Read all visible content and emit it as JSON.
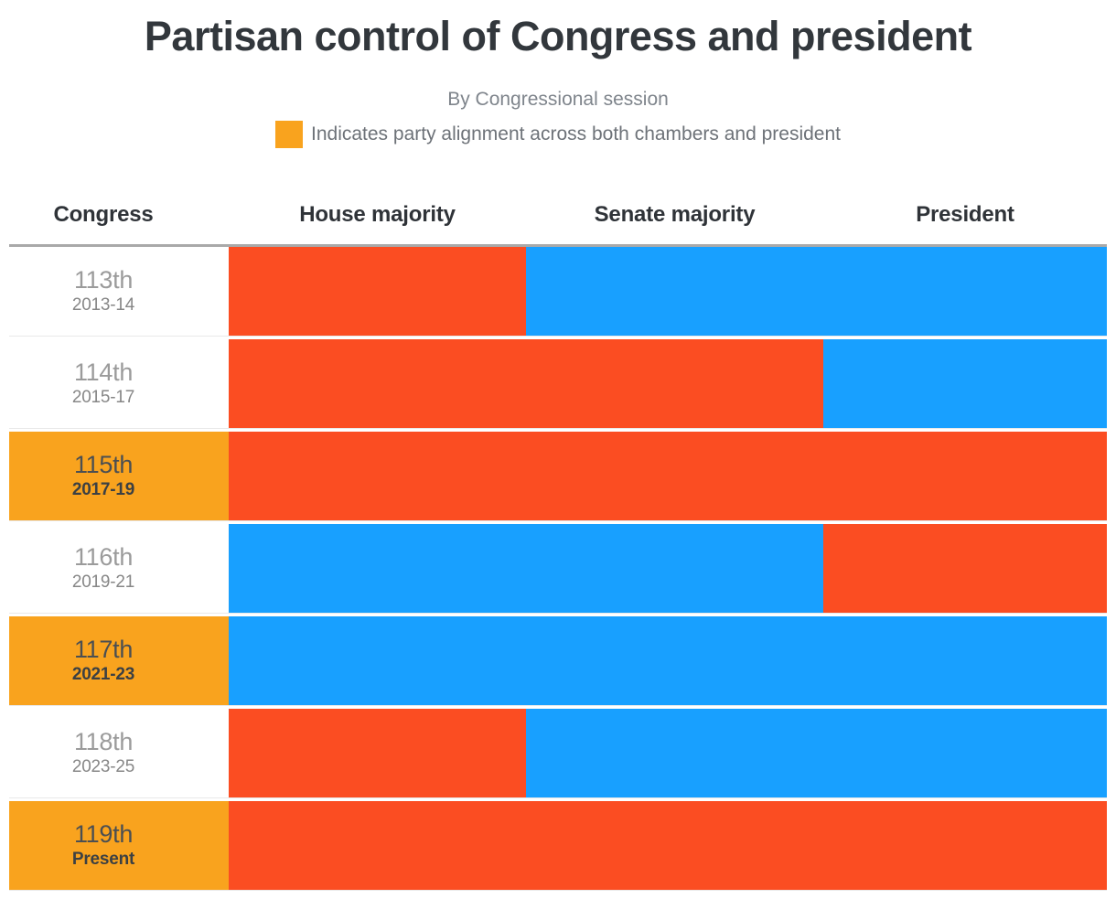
{
  "chart_data": {
    "type": "table",
    "title": "Partisan control of Congress and president",
    "subtitle": "By Congressional session",
    "legend": {
      "swatch_color": "#f9a31e",
      "label": "Indicates party alignment across both chambers and president"
    },
    "columns": [
      "Congress",
      "House majority",
      "Senate majority",
      "President"
    ],
    "party_colors": {
      "R": "#fb4d22",
      "D": "#18a0ff"
    },
    "alignment_color": "#f9a31e",
    "rows": [
      {
        "congress": "113th",
        "years": "2013-14",
        "house": "R",
        "senate": "D",
        "president": "D",
        "aligned": false
      },
      {
        "congress": "114th",
        "years": "2015-17",
        "house": "R",
        "senate": "R",
        "president": "D",
        "aligned": false
      },
      {
        "congress": "115th",
        "years": "2017-19",
        "house": "R",
        "senate": "R",
        "president": "R",
        "aligned": true
      },
      {
        "congress": "116th",
        "years": "2019-21",
        "house": "D",
        "senate": "D",
        "president": "R",
        "aligned": false
      },
      {
        "congress": "117th",
        "years": "2021-23",
        "house": "D",
        "senate": "D",
        "president": "D",
        "aligned": true
      },
      {
        "congress": "118th",
        "years": "2023-25",
        "house": "R",
        "senate": "D",
        "president": "D",
        "aligned": false
      },
      {
        "congress": "119th",
        "years": "Present",
        "house": "R",
        "senate": "R",
        "president": "R",
        "aligned": true
      }
    ]
  }
}
